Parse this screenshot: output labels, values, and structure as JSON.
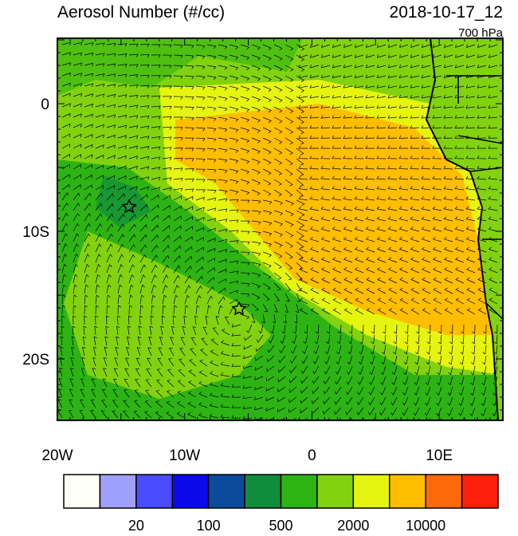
{
  "header": {
    "title": "Aerosol Number (#/cc)",
    "date": "2018-10-17_12",
    "level": "700 hPa"
  },
  "axes": {
    "x_labels": [
      "20W",
      "10W",
      "0",
      "10E"
    ],
    "y_labels": [
      "0",
      "10S",
      "20S"
    ]
  },
  "colorbar": {
    "labels": [
      "20",
      "100",
      "500",
      "2000",
      "10000"
    ],
    "colors": [
      "#fffffa",
      "#a0a0ff",
      "#4b4bff",
      "#0a0aeb",
      "#0a4b9b",
      "#0f8c3c",
      "#2db414",
      "#82d20f",
      "#e6f50f",
      "#ffbe00",
      "#ff690a",
      "#ff1e0a"
    ]
  }
}
